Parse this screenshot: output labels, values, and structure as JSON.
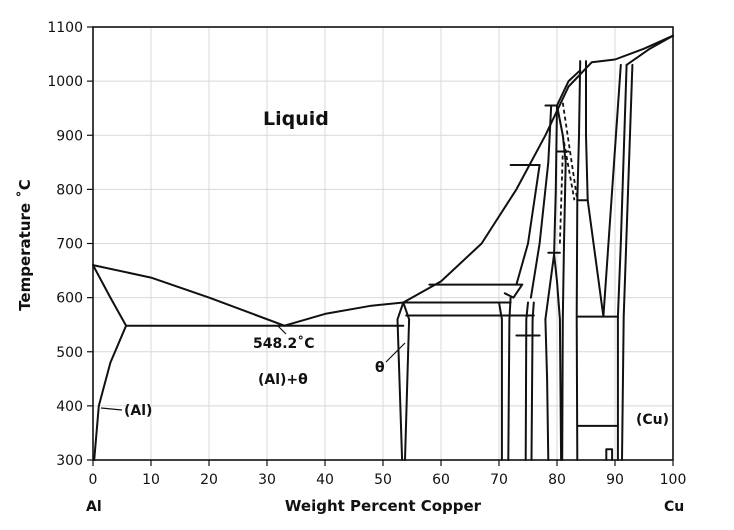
{
  "chart_data": {
    "type": "phase-diagram",
    "xlabel": "Weight Percent Copper",
    "ylabel": "Temperature ˚C",
    "xlim": [
      0,
      100
    ],
    "ylim": [
      300,
      1100
    ],
    "x_ticks": [
      0,
      10,
      20,
      30,
      40,
      50,
      60,
      70,
      80,
      90,
      100
    ],
    "x_tick_labels": [
      "0",
      "10",
      "20",
      "30",
      "40",
      "50",
      "60",
      "70",
      "80",
      "90",
      "100"
    ],
    "y_ticks": [
      300,
      400,
      500,
      600,
      700,
      800,
      900,
      1000,
      1100
    ],
    "y_tick_labels": [
      "300",
      "400",
      "500",
      "600",
      "700",
      "800",
      "900",
      "1000",
      "1100"
    ],
    "grid": true,
    "x_end_labels": {
      "left": "Al",
      "right": "Cu"
    },
    "region_labels": {
      "liquid": "Liquid",
      "eutectic": "548.2˚C",
      "al_theta": "(Al)+θ",
      "theta": "θ",
      "al": "(Al)",
      "cu": "(Cu)"
    },
    "eutectic": {
      "x": 33,
      "y": 548.2
    },
    "lines": [
      {
        "name": "liquidus-al",
        "points": [
          [
            0,
            660
          ],
          [
            10,
            637
          ],
          [
            20,
            600
          ],
          [
            33,
            548.2
          ]
        ]
      },
      {
        "name": "solidus-al",
        "points": [
          [
            0,
            660
          ],
          [
            3,
            600
          ],
          [
            5.7,
            548.2
          ]
        ]
      },
      {
        "name": "solvus-al",
        "points": [
          [
            0.2,
            300
          ],
          [
            1,
            400
          ],
          [
            3,
            480
          ],
          [
            5.7,
            548.2
          ]
        ]
      },
      {
        "name": "liquidus-theta",
        "points": [
          [
            33,
            548.2
          ],
          [
            40,
            570
          ],
          [
            48,
            585
          ],
          [
            53.5,
            591
          ],
          [
            60,
            630
          ],
          [
            67,
            700
          ],
          [
            73,
            800
          ],
          [
            78,
            900
          ],
          [
            82,
            990
          ],
          [
            86,
            1035
          ],
          [
            90,
            1040
          ],
          [
            95,
            1060
          ],
          [
            100,
            1084
          ]
        ]
      },
      {
        "name": "solidus-cu",
        "points": [
          [
            92,
            1030
          ],
          [
            96,
            1060
          ],
          [
            100,
            1084
          ]
        ]
      },
      {
        "name": "eutectic-isotherm",
        "points": [
          [
            5.7,
            548.2
          ],
          [
            53.5,
            548.2
          ]
        ]
      },
      {
        "name": "theta-left",
        "points": [
          [
            53.5,
            591
          ],
          [
            52.5,
            560
          ],
          [
            53.3,
            300
          ]
        ]
      },
      {
        "name": "theta-right",
        "points": [
          [
            53.5,
            591
          ],
          [
            54.5,
            560
          ],
          [
            53.8,
            300
          ]
        ]
      },
      {
        "name": "isotherm-591",
        "points": [
          [
            53.5,
            591
          ],
          [
            72,
            591
          ]
        ]
      },
      {
        "name": "isotherm-567",
        "points": [
          [
            54,
            567
          ],
          [
            76,
            567
          ]
        ]
      },
      {
        "name": "isotherm-624",
        "points": [
          [
            58,
            624
          ],
          [
            74,
            624
          ]
        ]
      },
      {
        "name": "eta-left",
        "points": [
          [
            70,
            591
          ],
          [
            70.5,
            560
          ],
          [
            70.5,
            300
          ]
        ]
      },
      {
        "name": "eta-right",
        "points": [
          [
            72,
            600
          ],
          [
            71.8,
            560
          ],
          [
            71.6,
            300
          ]
        ]
      },
      {
        "name": "eta-cap",
        "points": [
          [
            71,
            608
          ],
          [
            72.5,
            600
          ],
          [
            74,
            624
          ]
        ]
      },
      {
        "name": "zeta-left",
        "points": [
          [
            75,
            591
          ],
          [
            74.7,
            560
          ],
          [
            74.6,
            300
          ]
        ]
      },
      {
        "name": "zeta-right",
        "points": [
          [
            76,
            591
          ],
          [
            75.8,
            560
          ],
          [
            75.6,
            300
          ]
        ]
      },
      {
        "name": "isotherm-530",
        "points": [
          [
            73,
            530
          ],
          [
            77,
            530
          ]
        ]
      },
      {
        "name": "isotherm-845",
        "points": [
          [
            72,
            845
          ],
          [
            77,
            845
          ]
        ]
      },
      {
        "name": "epsilon-left",
        "points": [
          [
            73,
            624
          ],
          [
            75,
            700
          ],
          [
            77,
            845
          ]
        ]
      },
      {
        "name": "epsilon-right",
        "points": [
          [
            75.5,
            600
          ],
          [
            77,
            700
          ],
          [
            78.5,
            850
          ],
          [
            79,
            955
          ]
        ]
      },
      {
        "name": "isotherm-955",
        "points": [
          [
            78,
            955
          ],
          [
            80,
            955
          ]
        ]
      },
      {
        "name": "delta-dome",
        "points": [
          [
            78,
            560
          ],
          [
            78.5,
            600
          ],
          [
            79.5,
            680
          ],
          [
            80,
            630
          ],
          [
            80.5,
            560
          ],
          [
            80.7,
            300
          ]
        ]
      },
      {
        "name": "delta-left",
        "points": [
          [
            78,
            560
          ],
          [
            78.3,
            450
          ],
          [
            78.5,
            300
          ]
        ]
      },
      {
        "name": "isotherm-683",
        "points": [
          [
            78.5,
            683
          ],
          [
            80.5,
            683
          ]
        ]
      },
      {
        "name": "gamma-left",
        "points": [
          [
            79.5,
            680
          ],
          [
            79.8,
            800
          ],
          [
            80,
            955
          ]
        ]
      },
      {
        "name": "gamma-right",
        "points": [
          [
            80,
            955
          ],
          [
            81,
            900
          ],
          [
            81.5,
            850
          ],
          [
            81.2,
            700
          ],
          [
            81,
            560
          ],
          [
            80.9,
            300
          ]
        ]
      },
      {
        "name": "isotherm-870",
        "points": [
          [
            80,
            870
          ],
          [
            82,
            870
          ]
        ]
      },
      {
        "name": "beta-dome-left",
        "points": [
          [
            80,
            955
          ],
          [
            82,
            1000
          ],
          [
            84,
            1020
          ]
        ]
      },
      {
        "name": "beta-left",
        "points": [
          [
            84,
            1037
          ],
          [
            83.8,
            900
          ],
          [
            83.5,
            780
          ],
          [
            83.4,
            565
          ],
          [
            83.5,
            300
          ]
        ]
      },
      {
        "name": "beta-right",
        "points": [
          [
            85,
            1037
          ],
          [
            85,
            900
          ],
          [
            85.3,
            780
          ]
        ]
      },
      {
        "name": "isotherm-780",
        "points": [
          [
            83.5,
            780
          ],
          [
            85.3,
            780
          ]
        ]
      },
      {
        "name": "beta-eutectoid",
        "points": [
          [
            85.3,
            780
          ],
          [
            88,
            565
          ],
          [
            91,
            1030
          ]
        ]
      },
      {
        "name": "isotherm-565",
        "points": [
          [
            83.5,
            565
          ],
          [
            90.5,
            565
          ]
        ]
      },
      {
        "name": "isotherm-363",
        "points": [
          [
            83.5,
            363
          ],
          [
            90.5,
            363
          ]
        ]
      },
      {
        "name": "alpha2-box",
        "points": [
          [
            88.5,
            300
          ],
          [
            88.5,
            320
          ],
          [
            89.5,
            320
          ],
          [
            89.5,
            300
          ]
        ]
      },
      {
        "name": "cu-solvus",
        "points": [
          [
            92,
            1030
          ],
          [
            91,
            700
          ],
          [
            90.5,
            565
          ],
          [
            90.5,
            300
          ]
        ]
      },
      {
        "name": "cu-solvus-2",
        "points": [
          [
            93,
            1030
          ],
          [
            91.5,
            565
          ],
          [
            91.2,
            300
          ]
        ]
      }
    ],
    "dashed_lines": [
      {
        "name": "dash-1",
        "points": [
          [
            81,
            960
          ],
          [
            83.5,
            780
          ]
        ]
      },
      {
        "name": "dash-2",
        "points": [
          [
            81,
            900
          ],
          [
            83,
            780
          ]
        ]
      },
      {
        "name": "dash-3",
        "points": [
          [
            80.5,
            700
          ],
          [
            81,
            870
          ]
        ]
      }
    ]
  }
}
